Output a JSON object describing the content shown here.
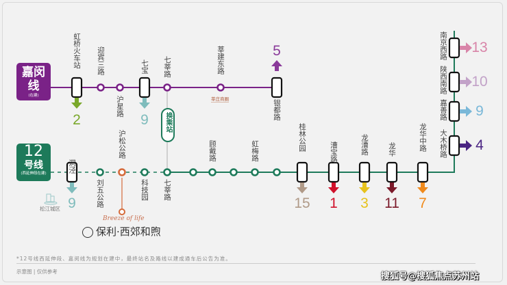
{
  "colors": {
    "jiamin": "#7a2287",
    "line12": "#1d7a5a",
    "orange": "#d56a3a"
  },
  "jiamin_line": {
    "title": "嘉闵线",
    "note": "(在建)",
    "stations": [
      {
        "name": "虹桥火车站",
        "type": "interchange",
        "transfer": "2",
        "transfer_color": "#7aa82b"
      },
      {
        "name": "迎宾三路",
        "type": "station"
      },
      {
        "name": "沪星路",
        "type": "station"
      },
      {
        "name": "七宝",
        "type": "interchange",
        "transfer": "9",
        "transfer_color": "#7fbcbc"
      },
      {
        "name": "七莘路",
        "type": "station"
      },
      {
        "name": "莘建东路",
        "type": "station",
        "tag": "莘庄商圈"
      },
      {
        "name": "银都路",
        "type": "interchange",
        "transfer": "5",
        "transfer_color": "#8a3a9a"
      }
    ]
  },
  "transfer_station": "换乘站",
  "line12": {
    "title": "12",
    "title2": "号线",
    "note": "(西延伸段在建)",
    "stations": [
      {
        "name": "洞泾",
        "type": "interchange",
        "transfer": "9",
        "transfer_color": "#7fbcbc"
      },
      {
        "name": "刘五公路",
        "type": "station"
      },
      {
        "name": "沪松公路",
        "type": "project"
      },
      {
        "name": "科技园",
        "type": "station"
      },
      {
        "name": "七莘路",
        "type": "station"
      },
      {
        "name": "",
        "type": "station"
      },
      {
        "name": "顾戴路",
        "type": "station"
      },
      {
        "name": "",
        "type": "station"
      },
      {
        "name": "虹梅路",
        "type": "station"
      },
      {
        "name": "",
        "type": "station"
      },
      {
        "name": "桂林公园",
        "type": "interchange",
        "transfer": "15",
        "transfer_color": "#b09a88"
      },
      {
        "name": "漕宝路",
        "type": "interchange",
        "transfer": "1",
        "transfer_color": "#d0112b"
      },
      {
        "name": "龙漕路",
        "type": "interchange",
        "transfer": "3",
        "transfer_color": "#e6c21c"
      },
      {
        "name": "龙华",
        "type": "interchange",
        "transfer": "11",
        "transfer_color": "#7b1a2a"
      },
      {
        "name": "龙华中路",
        "type": "interchange",
        "transfer": "7",
        "transfer_color": "#f08a1c"
      },
      {
        "name": "大木桥路",
        "type": "interchange",
        "transfer": "4",
        "transfer_color": "#4a2483"
      },
      {
        "name": "嘉善路",
        "type": "interchange",
        "transfer": "9",
        "transfer_color": "#7ab8d8"
      },
      {
        "name": "陕西南路",
        "type": "interchange",
        "transfer": "10",
        "transfer_color": "#c2a2c8"
      },
      {
        "name": "南京西路",
        "type": "interchange",
        "transfer": "13",
        "transfer_color": "#d884a8"
      }
    ]
  },
  "district": "松江城区",
  "project": {
    "logo_text": "保利·西郊和煦",
    "logo_sub": "Breeze of life"
  },
  "footnote": "*12号线西延伸段、嘉闵线为规划在建中，最终站名及路线以建成通车后公告为准。",
  "schematic_note": "示意图 | 仅供参考",
  "watermark": "搜狐号@搜狐焦点苏州站"
}
